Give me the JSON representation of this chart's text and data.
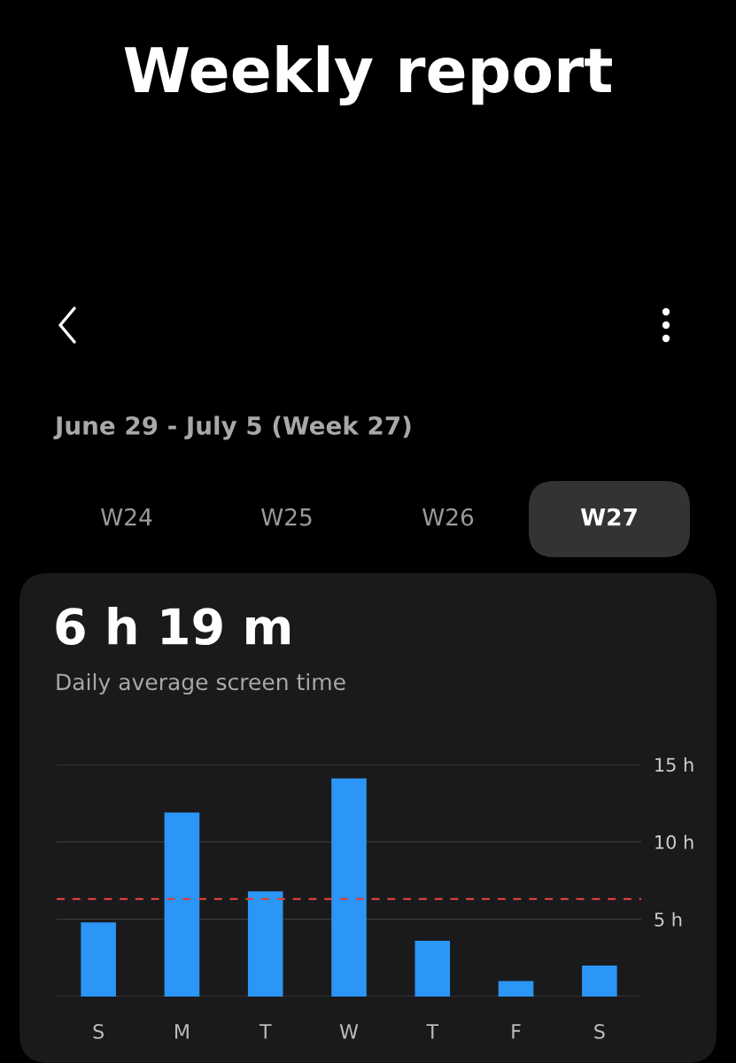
{
  "chart_data": {
    "type": "bar",
    "title": "Weekly report",
    "subtitle": "June 29 - July 5 (Week 27)",
    "annotations": [
      "W24",
      "W25",
      "W26",
      "W27",
      "6 h 19 m",
      "Daily average screen time"
    ],
    "categories": [
      "S",
      "M",
      "T",
      "W",
      "T",
      "F",
      "S"
    ],
    "values": [
      4.8,
      11.9,
      6.8,
      14.1,
      3.6,
      1.0,
      2.0
    ],
    "color": "#2b96f5",
    "ylim": [
      0,
      15
    ],
    "yticks": [
      {
        "value": 0,
        "label": null
      },
      {
        "value": 5,
        "label": "5 h"
      },
      {
        "value": 10,
        "label": "10 h"
      },
      {
        "value": 15,
        "label": "15 h"
      }
    ],
    "grid": "y",
    "ref_lines": [
      {
        "axis": "y",
        "value": 6.3,
        "color": "#d9403a",
        "line_style": "dashed"
      }
    ]
  }
}
